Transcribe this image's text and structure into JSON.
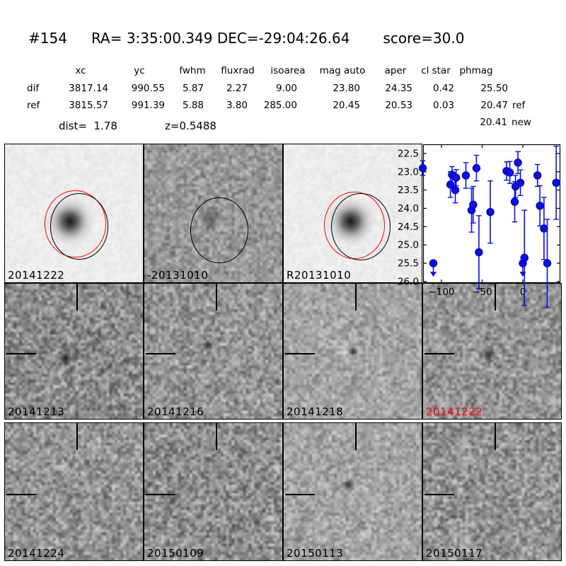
{
  "header": {
    "id": "#154",
    "ra": "RA= 3:35:00.349",
    "dec": "DEC=-29:04:26.64",
    "score": "score=30.0"
  },
  "photometry": {
    "columns": [
      "xc",
      "yc",
      "fwhm",
      "fluxrad",
      "isoarea",
      "mag auto",
      "aper",
      "cl star",
      "phmag"
    ],
    "rows": [
      {
        "label": "dif",
        "values": [
          "3817.14",
          "990.55",
          "5.87",
          "2.27",
          "9.00",
          "23.80",
          "24.35",
          "0.42",
          "25.50"
        ],
        "tag": ""
      },
      {
        "label": "ref",
        "values": [
          "3815.57",
          "991.39",
          "5.88",
          "3.80",
          "285.00",
          "20.45",
          "20.53",
          "0.03",
          "20.47"
        ],
        "tag": "ref"
      }
    ],
    "extra": {
      "value": "20.41",
      "tag": "new"
    },
    "dist_label": "dist=  1.78",
    "z_label": "z=0.5488"
  },
  "panels": {
    "row1": [
      {
        "label": "20141222",
        "label_color": "#000000"
      },
      {
        "label": "-20131010",
        "label_color": "#000000"
      },
      {
        "label": "R20131010",
        "label_color": "#000000"
      }
    ],
    "row2": [
      {
        "label": "20141213",
        "label_color": "#000000"
      },
      {
        "label": "20141216",
        "label_color": "#000000"
      },
      {
        "label": "20141218",
        "label_color": "#000000"
      },
      {
        "label": "20141222",
        "label_color": "#ff0000"
      }
    ],
    "row3": [
      {
        "label": "20141224",
        "label_color": "#000000"
      },
      {
        "label": "20150109",
        "label_color": "#000000"
      },
      {
        "label": "20150113",
        "label_color": "#000000"
      },
      {
        "label": "20150117",
        "label_color": "#000000"
      }
    ]
  },
  "colors": {
    "marker_blue": "#0d0de8",
    "marker_edge": "#0000a8",
    "aperture_red": "#ff0000",
    "aperture_black": "#000000",
    "highlight_label": "#ff0000",
    "text": "#000000"
  },
  "chart_data": {
    "type": "scatter",
    "title": "",
    "xlabel": "",
    "ylabel": "",
    "grid": false,
    "legend": "none",
    "y_axis_inverted": true,
    "xlim": [
      -122.6,
      46.1
    ],
    "ylim": [
      26.04,
      22.25
    ],
    "x_tick_values": [
      -100,
      -50,
      0
    ],
    "x_tick_labels": [
      "−100",
      "−50",
      "0"
    ],
    "y_tick_values": [
      22.5,
      23.0,
      23.5,
      24.0,
      24.5,
      25.0,
      25.5,
      26.0
    ],
    "y_tick_labels": [
      "22.5",
      "23.0",
      "23.5",
      "24.0",
      "24.5",
      "25.0",
      "25.5",
      "26.0"
    ],
    "series": [
      {
        "name": "candidate light curve (magnitude vs days)",
        "marker": "circle",
        "points": [
          {
            "x": -123,
            "y": 22.9,
            "err": 0.2,
            "upper_limit": false
          },
          {
            "x": -110,
            "y": 25.5,
            "err": 0.15,
            "upper_limit": true
          },
          {
            "x": -89,
            "y": 23.35,
            "err": 0.35,
            "upper_limit": false
          },
          {
            "x": -87,
            "y": 23.08,
            "err": 0.22,
            "upper_limit": false
          },
          {
            "x": -83,
            "y": 23.5,
            "err": 0.35,
            "upper_limit": false
          },
          {
            "x": -82,
            "y": 23.16,
            "err": 0.22,
            "upper_limit": false
          },
          {
            "x": -70,
            "y": 23.1,
            "err": 0.35,
            "upper_limit": false
          },
          {
            "x": -63,
            "y": 24.05,
            "err": 0.6,
            "upper_limit": false
          },
          {
            "x": -61,
            "y": 23.9,
            "err": 0.5,
            "upper_limit": false
          },
          {
            "x": -57,
            "y": 22.9,
            "err": 0.35,
            "upper_limit": false
          },
          {
            "x": -54,
            "y": 25.2,
            "err": 1.0,
            "upper_limit": false
          },
          {
            "x": -40,
            "y": 24.1,
            "err": 0.85,
            "upper_limit": false
          },
          {
            "x": -20,
            "y": 22.98,
            "err": 0.25,
            "upper_limit": false
          },
          {
            "x": -16,
            "y": 23.02,
            "err": 0.3,
            "upper_limit": false
          },
          {
            "x": -10,
            "y": 23.82,
            "err": 0.55,
            "upper_limit": false
          },
          {
            "x": -9,
            "y": 23.4,
            "err": 0.3,
            "upper_limit": false
          },
          {
            "x": -6,
            "y": 22.75,
            "err": 0.3,
            "upper_limit": false
          },
          {
            "x": -3,
            "y": 23.3,
            "err": 0.35,
            "upper_limit": false
          },
          {
            "x": 0,
            "y": 25.5,
            "err": 0.2,
            "upper_limit": true
          },
          {
            "x": 2,
            "y": 25.35,
            "err": 1.3,
            "upper_limit": false
          },
          {
            "x": 18,
            "y": 23.1,
            "err": 0.3,
            "upper_limit": false
          },
          {
            "x": 21,
            "y": 23.93,
            "err": 0.55,
            "upper_limit": false
          },
          {
            "x": 26,
            "y": 24.55,
            "err": 0.85,
            "upper_limit": false
          },
          {
            "x": 30,
            "y": 25.5,
            "err": 1.2,
            "upper_limit": false
          },
          {
            "x": 41,
            "y": 23.3,
            "err": 1.0,
            "upper_limit": false
          }
        ]
      }
    ]
  }
}
